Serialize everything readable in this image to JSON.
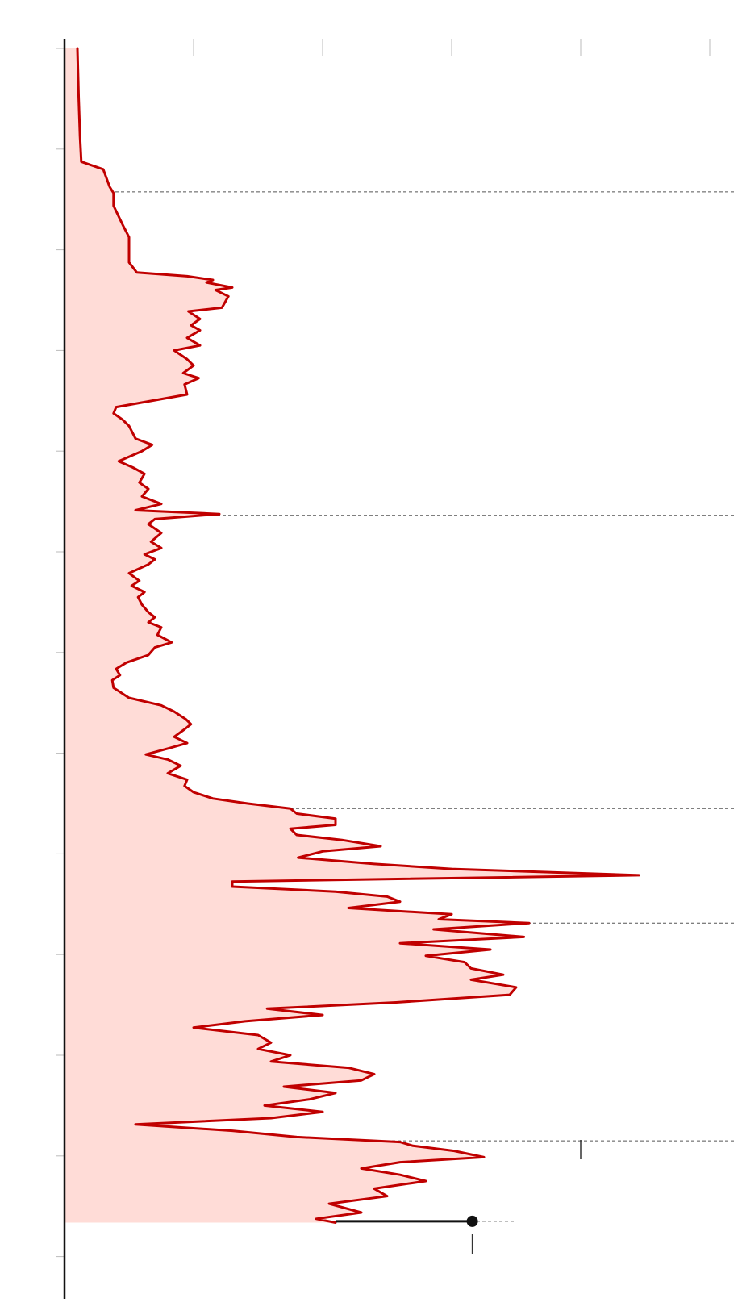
{
  "chart_data": {
    "type": "area",
    "orientation": "vertical-time-axis",
    "title": "",
    "xlabel": "",
    "ylabel": "",
    "xlim": [
      0,
      5
    ],
    "ylim": [
      0,
      1000
    ],
    "grid": {
      "value_ticks": [
        1,
        2,
        3,
        4,
        5
      ],
      "time_ticks_every": 80
    },
    "colors": {
      "line": "#c00000",
      "fill": "#ffdcd7",
      "axis": "#111111",
      "reference": "#555555",
      "tick": "#bbbbbb"
    },
    "reference_lines": [
      114,
      371,
      604,
      695,
      868,
      932
    ],
    "markers": [
      {
        "t": 932,
        "value": 3.16,
        "from": 2.1,
        "type": "dot"
      }
    ],
    "annotation_ticks": [
      {
        "t": 875,
        "value": 4.0
      },
      {
        "t": 950,
        "value": 3.16
      }
    ],
    "series": [
      {
        "points": [
          [
            0,
            0.1
          ],
          [
            40,
            0.11
          ],
          [
            70,
            0.12
          ],
          [
            90,
            0.13
          ],
          [
            96,
            0.3
          ],
          [
            110,
            0.35
          ],
          [
            115,
            0.38
          ],
          [
            125,
            0.38
          ],
          [
            140,
            0.45
          ],
          [
            150,
            0.5
          ],
          [
            160,
            0.5
          ],
          [
            170,
            0.5
          ],
          [
            178,
            0.56
          ],
          [
            181,
            0.95
          ],
          [
            184,
            1.15
          ],
          [
            186,
            1.1
          ],
          [
            190,
            1.3
          ],
          [
            192,
            1.17
          ],
          [
            197,
            1.27
          ],
          [
            206,
            1.22
          ],
          [
            209,
            0.96
          ],
          [
            215,
            1.05
          ],
          [
            220,
            0.98
          ],
          [
            224,
            1.05
          ],
          [
            230,
            0.95
          ],
          [
            236,
            1.05
          ],
          [
            240,
            0.85
          ],
          [
            247,
            0.95
          ],
          [
            252,
            1.0
          ],
          [
            258,
            0.92
          ],
          [
            262,
            1.04
          ],
          [
            267,
            0.93
          ],
          [
            275,
            0.95
          ],
          [
            285,
            0.4
          ],
          [
            290,
            0.38
          ],
          [
            295,
            0.45
          ],
          [
            300,
            0.5
          ],
          [
            310,
            0.55
          ],
          [
            315,
            0.68
          ],
          [
            320,
            0.6
          ],
          [
            328,
            0.42
          ],
          [
            333,
            0.53
          ],
          [
            338,
            0.62
          ],
          [
            345,
            0.58
          ],
          [
            350,
            0.65
          ],
          [
            356,
            0.6
          ],
          [
            362,
            0.75
          ],
          [
            367,
            0.55
          ],
          [
            370,
            1.2
          ],
          [
            374,
            0.7
          ],
          [
            378,
            0.65
          ],
          [
            385,
            0.75
          ],
          [
            392,
            0.67
          ],
          [
            397,
            0.75
          ],
          [
            402,
            0.62
          ],
          [
            406,
            0.7
          ],
          [
            410,
            0.65
          ],
          [
            417,
            0.5
          ],
          [
            423,
            0.58
          ],
          [
            427,
            0.52
          ],
          [
            432,
            0.62
          ],
          [
            436,
            0.57
          ],
          [
            442,
            0.6
          ],
          [
            448,
            0.65
          ],
          [
            452,
            0.7
          ],
          [
            456,
            0.65
          ],
          [
            460,
            0.75
          ],
          [
            466,
            0.72
          ],
          [
            472,
            0.83
          ],
          [
            476,
            0.7
          ],
          [
            482,
            0.65
          ],
          [
            488,
            0.48
          ],
          [
            493,
            0.4
          ],
          [
            498,
            0.43
          ],
          [
            502,
            0.37
          ],
          [
            508,
            0.38
          ],
          [
            516,
            0.5
          ],
          [
            522,
            0.75
          ],
          [
            527,
            0.85
          ],
          [
            533,
            0.94
          ],
          [
            537,
            0.98
          ],
          [
            541,
            0.93
          ],
          [
            547,
            0.85
          ],
          [
            552,
            0.95
          ],
          [
            556,
            0.81
          ],
          [
            561,
            0.63
          ],
          [
            565,
            0.8
          ],
          [
            570,
            0.9
          ],
          [
            576,
            0.8
          ],
          [
            581,
            0.95
          ],
          [
            586,
            0.93
          ],
          [
            591,
            1.0
          ],
          [
            596,
            1.15
          ],
          [
            600,
            1.42
          ],
          [
            604,
            1.75
          ],
          [
            608,
            1.8
          ],
          [
            612,
            2.1
          ],
          [
            617,
            2.1
          ],
          [
            620,
            1.75
          ],
          [
            625,
            1.8
          ],
          [
            629,
            2.15
          ],
          [
            634,
            2.45
          ],
          [
            638,
            2.0
          ],
          [
            643,
            1.81
          ],
          [
            648,
            2.4
          ],
          [
            652,
            3.0
          ],
          [
            657,
            4.45
          ],
          [
            662,
            1.3
          ],
          [
            666,
            1.3
          ],
          [
            670,
            2.1
          ],
          [
            674,
            2.5
          ],
          [
            678,
            2.6
          ],
          [
            683,
            2.2
          ],
          [
            688,
            3.0
          ],
          [
            692,
            2.9
          ],
          [
            695,
            3.6
          ],
          [
            700,
            2.86
          ],
          [
            706,
            3.56
          ],
          [
            711,
            2.6
          ],
          [
            716,
            3.3
          ],
          [
            721,
            2.8
          ],
          [
            726,
            3.1
          ],
          [
            731,
            3.15
          ],
          [
            736,
            3.4
          ],
          [
            740,
            3.15
          ],
          [
            746,
            3.5
          ],
          [
            752,
            3.45
          ],
          [
            758,
            2.57
          ],
          [
            763,
            1.57
          ],
          [
            768,
            2.0
          ],
          [
            773,
            1.4
          ],
          [
            778,
            1.0
          ],
          [
            784,
            1.5
          ],
          [
            790,
            1.6
          ],
          [
            795,
            1.5
          ],
          [
            800,
            1.75
          ],
          [
            805,
            1.6
          ],
          [
            810,
            2.2
          ],
          [
            815,
            2.4
          ],
          [
            820,
            2.3
          ],
          [
            825,
            1.7
          ],
          [
            830,
            2.1
          ],
          [
            835,
            1.9
          ],
          [
            840,
            1.55
          ],
          [
            845,
            2.0
          ],
          [
            850,
            1.6
          ],
          [
            855,
            0.55
          ],
          [
            860,
            1.3
          ],
          [
            865,
            1.8
          ],
          [
            869,
            2.6
          ],
          [
            872,
            2.7
          ],
          [
            876,
            3.02
          ],
          [
            881,
            3.25
          ],
          [
            885,
            2.6
          ],
          [
            890,
            2.3
          ],
          [
            895,
            2.6
          ],
          [
            900,
            2.8
          ],
          [
            906,
            2.4
          ],
          [
            912,
            2.5
          ],
          [
            918,
            2.05
          ],
          [
            925,
            2.3
          ],
          [
            930,
            1.95
          ],
          [
            933,
            2.1
          ]
        ]
      }
    ]
  }
}
